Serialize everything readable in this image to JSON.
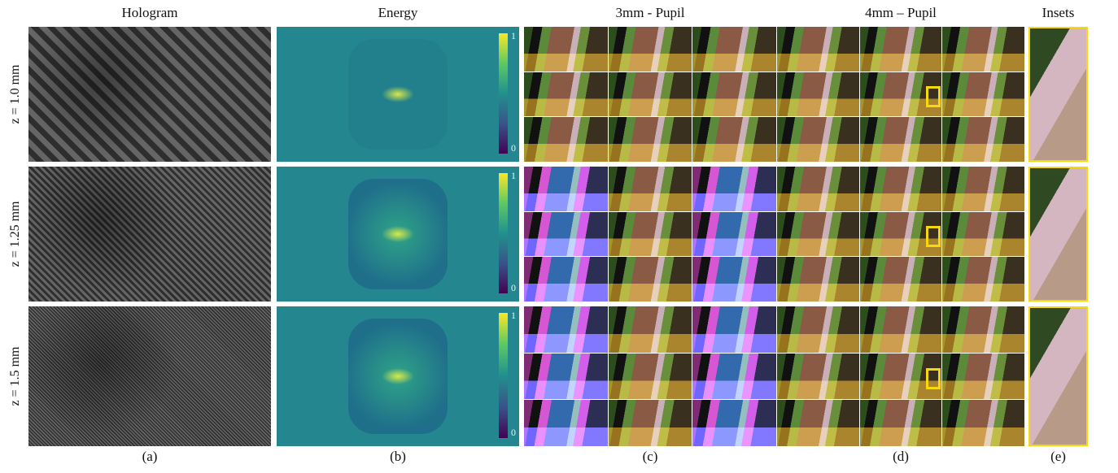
{
  "columns": [
    "Hologram",
    "Energy",
    "3mm - Pupil",
    "4mm – Pupil",
    "Insets"
  ],
  "rows": [
    "z = 1.0 mm",
    "z = 1.25 mm",
    "z = 1.5 mm"
  ],
  "subfigure_labels": [
    "(a)",
    "(b)",
    "(c)",
    "(d)",
    "(e)"
  ],
  "colorbar": {
    "max_label": "1",
    "min_label": "0"
  }
}
